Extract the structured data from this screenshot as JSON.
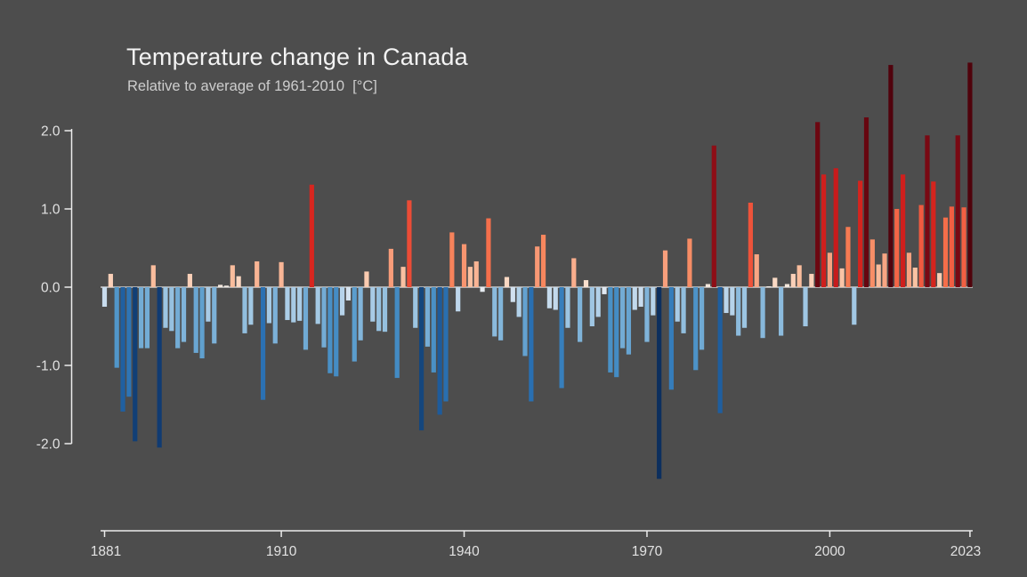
{
  "header": {
    "title": "Temperature change in Canada",
    "subtitle": "Relative to average of 1961-2010  [°C]"
  },
  "colors": {
    "background": "#4d4d4d",
    "title_text": "#f3f3f3",
    "subtitle_text": "#cdcdcd",
    "axis_line": "#ececec",
    "tick_text": "#e2e2e2",
    "zero_line": "#fafafa",
    "scale_stops": [
      [
        -2.6,
        "#0b2a56"
      ],
      [
        -2.0,
        "#103d74"
      ],
      [
        -1.8,
        "#15477f"
      ],
      [
        -1.6,
        "#1f5fa0"
      ],
      [
        -1.45,
        "#2a70b2"
      ],
      [
        -1.25,
        "#3a83bf"
      ],
      [
        -1.05,
        "#4e94c8"
      ],
      [
        -0.85,
        "#68a5d1"
      ],
      [
        -0.7,
        "#7fb3d9"
      ],
      [
        -0.55,
        "#98c2e0"
      ],
      [
        -0.42,
        "#abcde7"
      ],
      [
        -0.3,
        "#c0d8ec"
      ],
      [
        -0.18,
        "#d3e2f0"
      ],
      [
        -0.07,
        "#e4ebf3"
      ],
      [
        0,
        "#f0ece7"
      ],
      [
        0.07,
        "#f8e3d3"
      ],
      [
        0.15,
        "#fbd4bd"
      ],
      [
        0.25,
        "#fac2a3"
      ],
      [
        0.35,
        "#f9b190"
      ],
      [
        0.5,
        "#f89a77"
      ],
      [
        0.65,
        "#f78a61"
      ],
      [
        0.8,
        "#f5764e"
      ],
      [
        1.0,
        "#f46546"
      ],
      [
        1.15,
        "#e84330"
      ],
      [
        1.3,
        "#d8271f"
      ],
      [
        1.5,
        "#cb1c1c"
      ],
      [
        1.7,
        "#a31318"
      ],
      [
        1.9,
        "#7c0a14"
      ],
      [
        2.2,
        "#650510"
      ],
      [
        2.6,
        "#57040e"
      ],
      [
        2.95,
        "#4e030c"
      ]
    ]
  },
  "chart_data": {
    "type": "bar",
    "title": "Temperature change in Canada",
    "subtitle": "Relative to average of 1961-2010  [°C]",
    "unit": "°C",
    "xlabel": "",
    "ylabel": "",
    "grid": "off",
    "legend": "none",
    "start_year": 1881,
    "end_year": 2023,
    "ylim": [
      -2.75,
      3.0
    ],
    "y_tick_values": [
      2,
      1,
      0,
      -1,
      -2
    ],
    "y_tick_labels": [
      "2.0",
      "1.0",
      "0.0",
      "-1.0",
      "-2.0"
    ],
    "x_tick_years": [
      1881,
      1910,
      1940,
      1970,
      2000,
      2023
    ],
    "x_tick_labels": [
      "1881",
      "1910",
      "1940",
      "1970",
      "2000",
      "2023"
    ],
    "values": [
      -0.25,
      0.17,
      -1.03,
      -1.59,
      -1.4,
      -1.97,
      -0.78,
      -0.78,
      0.28,
      -2.05,
      -0.52,
      -0.56,
      -0.78,
      -0.7,
      0.17,
      -0.84,
      -0.91,
      -0.44,
      -0.72,
      0.03,
      0.02,
      0.28,
      0.14,
      -0.59,
      -0.48,
      0.33,
      -1.44,
      -0.46,
      -0.72,
      0.32,
      -0.42,
      -0.45,
      -0.43,
      -0.8,
      1.31,
      -0.47,
      -0.77,
      -1.1,
      -1.14,
      -0.36,
      -0.17,
      -0.95,
      -0.68,
      0.2,
      -0.44,
      -0.56,
      -0.57,
      0.49,
      -1.16,
      0.26,
      1.11,
      -0.52,
      -1.83,
      -0.76,
      -1.09,
      -1.63,
      -1.46,
      0.7,
      -0.31,
      0.55,
      0.26,
      0.33,
      -0.06,
      0.88,
      -0.63,
      -0.68,
      0.13,
      -0.19,
      -0.38,
      -0.88,
      -1.46,
      0.52,
      0.67,
      -0.27,
      -0.29,
      -1.29,
      -0.52,
      0.37,
      -0.7,
      0.09,
      -0.5,
      -0.38,
      -0.09,
      -1.09,
      -1.15,
      -0.78,
      -0.86,
      -0.29,
      -0.25,
      -0.7,
      -0.36,
      -2.45,
      0.47,
      -1.31,
      -0.44,
      -0.59,
      0.62,
      -1.06,
      -0.8,
      0.04,
      1.81,
      -1.61,
      -0.33,
      -0.36,
      -0.62,
      -0.52,
      1.08,
      0.42,
      -0.65,
      0.01,
      0.12,
      -0.62,
      0.04,
      0.17,
      0.28,
      -0.5,
      0.17,
      2.11,
      1.44,
      0.44,
      1.52,
      0.24,
      0.77,
      -0.48,
      1.36,
      2.17,
      0.61,
      0.29,
      0.43,
      2.84,
      1.0,
      1.44,
      0.44,
      0.25,
      1.05,
      1.94,
      1.35,
      0.18,
      0.89,
      1.03,
      1.94,
      1.02,
      2.87
    ]
  }
}
